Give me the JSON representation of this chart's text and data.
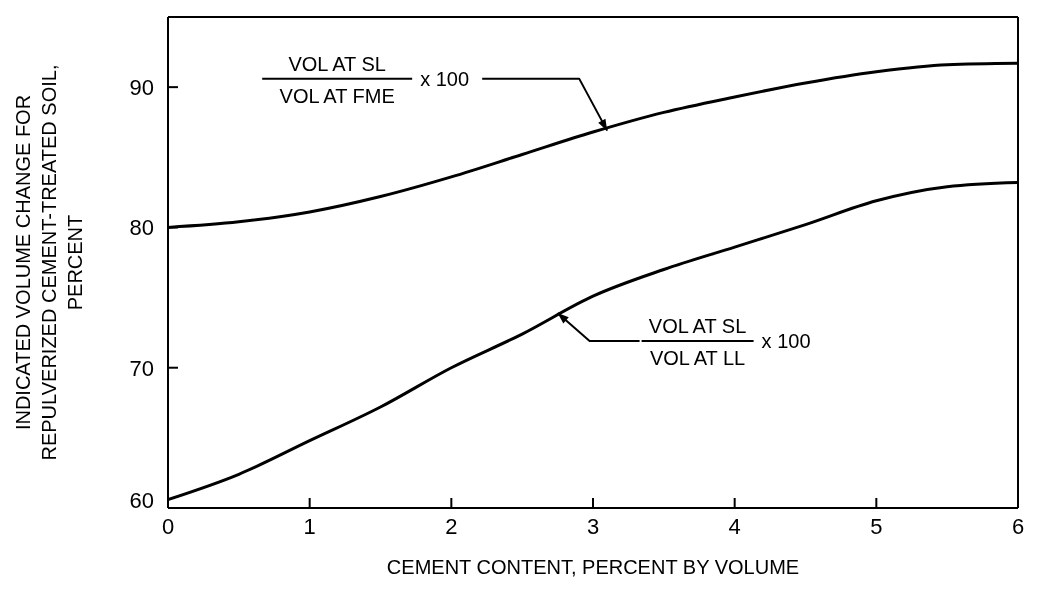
{
  "chart_data": {
    "type": "line",
    "xlabel": "CEMENT CONTENT, PERCENT BY VOLUME",
    "ylabel": "INDICATED VOLUME CHANGE FOR\nREPULVERIZED CEMENT-TREATED SOIL,\nPERCENT",
    "x": [
      0,
      0.5,
      1,
      1.5,
      2,
      2.5,
      3,
      3.5,
      4,
      4.5,
      5,
      5.5,
      6
    ],
    "series": [
      {
        "color": "#000000",
        "values": [
          80.0,
          80.4,
          81.1,
          82.2,
          83.6,
          85.2,
          86.8,
          88.2,
          89.3,
          90.3,
          91.1,
          91.6,
          91.7
        ]
      },
      {
        "color": "#000000",
        "values": [
          60.6,
          62.4,
          64.8,
          67.2,
          70.0,
          72.4,
          75.1,
          77.0,
          78.6,
          80.2,
          81.9,
          82.9,
          83.2
        ]
      }
    ],
    "xlim": [
      0,
      6
    ],
    "xticks": [
      0,
      1,
      2,
      3,
      4,
      5,
      6
    ],
    "ylim": [
      60,
      95
    ],
    "yticks": [
      60,
      70,
      80,
      90
    ],
    "grid": false,
    "marker": "none",
    "line_style": "solid",
    "annotations": [
      "VOL AT SL",
      "VOL AT FME",
      {
        "text": "x 100",
        "x": 3.1,
        "y": 86.9
      },
      {
        "text": "VOL AT SL",
        "x": 2.75,
        "y": 73.9
      },
      "VOL AT LL",
      "x 100"
    ]
  }
}
